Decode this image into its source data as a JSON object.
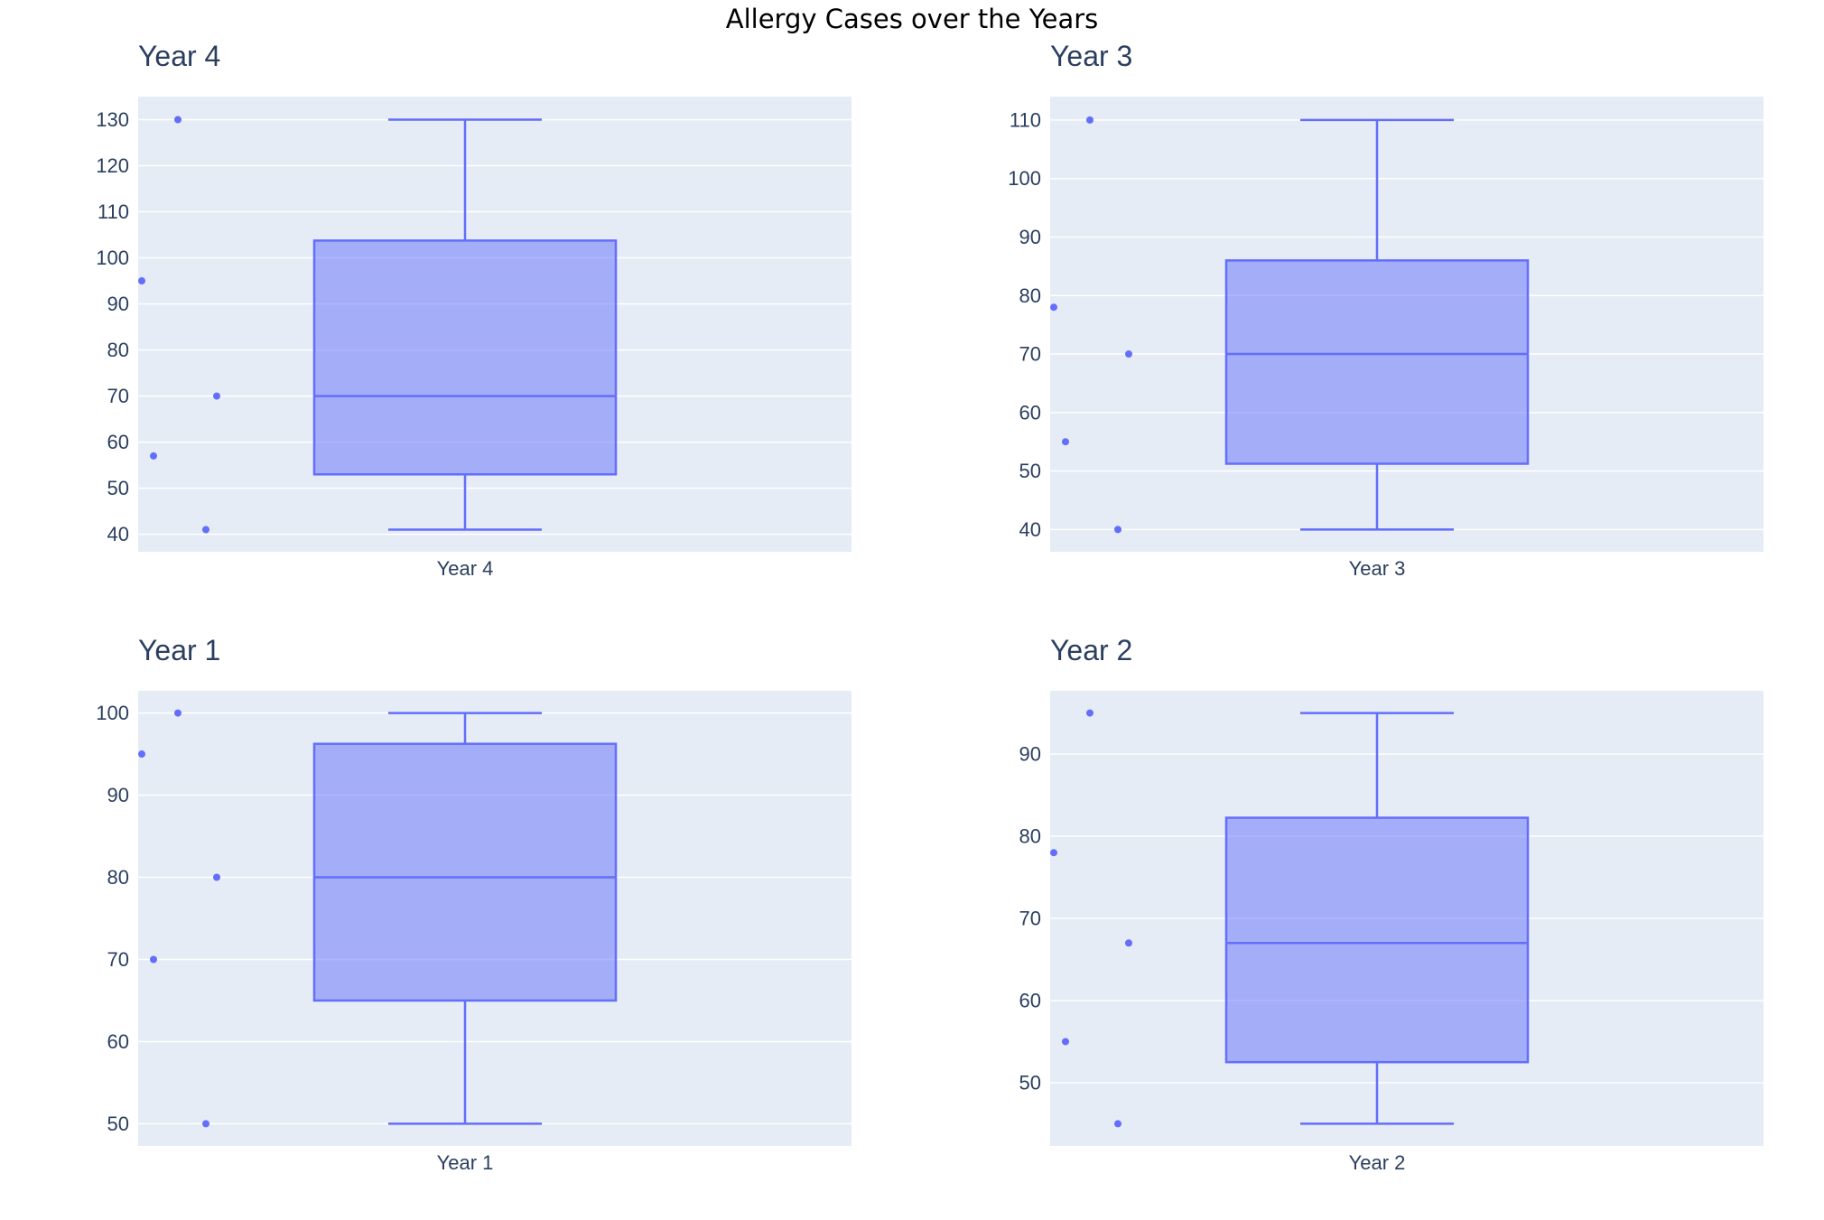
{
  "figure": {
    "title": "Allergy Cases over the Years"
  },
  "colors": {
    "plot_background": "#e5ecf6",
    "grid": "#ffffff",
    "box_fill": "rgba(99,110,250,0.5)",
    "box_line": "#636efa",
    "text": "#2a3f5f"
  },
  "chart_data": [
    {
      "type": "box",
      "title": "Year 4",
      "category": "Year 4",
      "points": [
        95,
        57,
        130,
        41,
        70
      ],
      "stats": {
        "min": 41,
        "q1": 53,
        "median": 70,
        "q3": 103.75,
        "max": 130
      },
      "yticks": [
        40,
        50,
        60,
        70,
        80,
        90,
        100,
        110,
        120,
        130
      ],
      "ylim": [
        36.2,
        135
      ],
      "grid": true,
      "points_shown": "all"
    },
    {
      "type": "box",
      "title": "Year 3",
      "category": "Year 3",
      "points": [
        78,
        55,
        110,
        40,
        70
      ],
      "stats": {
        "min": 40,
        "q1": 51.25,
        "median": 70,
        "q3": 86,
        "max": 110
      },
      "yticks": [
        40,
        50,
        60,
        70,
        80,
        90,
        100,
        110
      ],
      "ylim": [
        36.2,
        114
      ],
      "grid": true,
      "points_shown": "all"
    },
    {
      "type": "box",
      "title": "Year 1",
      "category": "Year 1",
      "points": [
        95,
        70,
        100,
        50,
        80
      ],
      "stats": {
        "min": 50,
        "q1": 65,
        "median": 80,
        "q3": 96.25,
        "max": 100
      },
      "yticks": [
        50,
        60,
        70,
        80,
        90,
        100
      ],
      "ylim": [
        47.3,
        102.7
      ],
      "grid": true,
      "points_shown": "all"
    },
    {
      "type": "box",
      "title": "Year 2",
      "category": "Year 2",
      "points": [
        78,
        55,
        95,
        45,
        67
      ],
      "stats": {
        "min": 45,
        "q1": 52.5,
        "median": 67,
        "q3": 82.25,
        "max": 95
      },
      "yticks": [
        50,
        60,
        70,
        80,
        90
      ],
      "ylim": [
        42.3,
        97.7
      ],
      "grid": true,
      "points_shown": "all"
    }
  ]
}
